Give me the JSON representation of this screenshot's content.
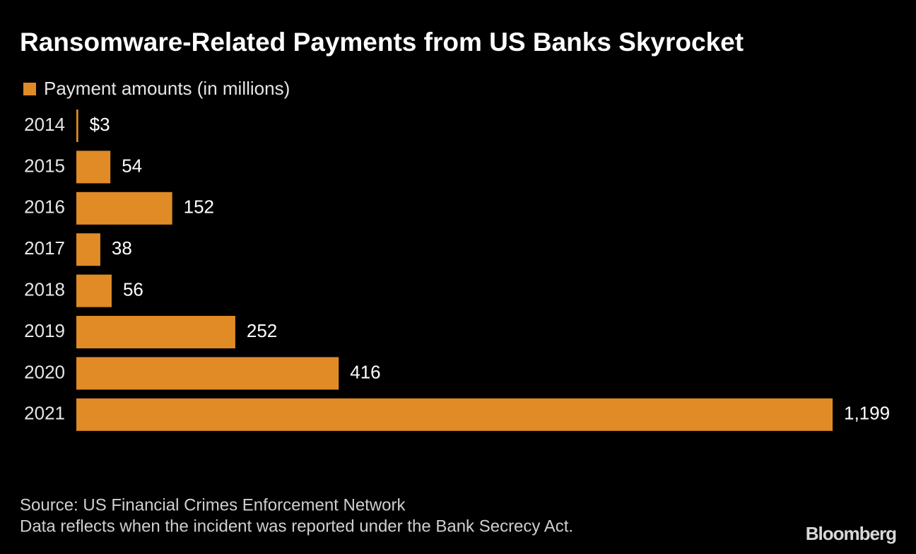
{
  "chart_data": {
    "type": "hbar",
    "title": "Ransomware-Related Payments from US Banks Skyrocket",
    "categories": [
      "2014",
      "2015",
      "2016",
      "2017",
      "2018",
      "2019",
      "2020",
      "2021"
    ],
    "series": [
      {
        "name": "Payment amounts (in millions)",
        "color": "#e08b26",
        "values": [
          3,
          54,
          152,
          38,
          56,
          252,
          416,
          1199
        ],
        "value_labels": [
          "$3",
          "54",
          "152",
          "38",
          "56",
          "252",
          "416",
          "1,199"
        ]
      }
    ],
    "source": [
      "Source: US Financial Crimes Enforcement Network",
      "Data reflects when the incident was reported under the Bank Secrecy Act."
    ],
    "logo": "Bloomberg"
  }
}
